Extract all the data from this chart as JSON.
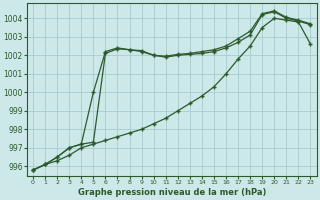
{
  "title": "Graphe pression niveau de la mer (hPa)",
  "background_color": "#cce8e8",
  "grid_color": "#aacccc",
  "line_color": "#2d5a2d",
  "marker_color": "#2d5a2d",
  "xlim": [
    -0.5,
    23.5
  ],
  "ylim": [
    995.5,
    1004.8
  ],
  "yticks": [
    996,
    997,
    998,
    999,
    1000,
    1001,
    1002,
    1003,
    1004
  ],
  "xticks": [
    0,
    1,
    2,
    3,
    4,
    5,
    6,
    7,
    8,
    9,
    10,
    11,
    12,
    13,
    14,
    15,
    16,
    17,
    18,
    19,
    20,
    21,
    22,
    23
  ],
  "series": [
    {
      "x": [
        0,
        1,
        2,
        3,
        4,
        5,
        6,
        7,
        8,
        9,
        10,
        11,
        12,
        13,
        14,
        15,
        16,
        17,
        18,
        19,
        20,
        21,
        22,
        23
      ],
      "y": [
        995.8,
        996.1,
        996.3,
        996.6,
        997.0,
        997.2,
        997.4,
        997.6,
        997.8,
        998.0,
        998.3,
        998.6,
        999.0,
        999.4,
        999.8,
        1000.3,
        1001.0,
        1001.8,
        1002.5,
        1003.5,
        1004.0,
        1003.9,
        1003.8,
        1002.6
      ]
    },
    {
      "x": [
        0,
        1,
        2,
        3,
        4,
        5,
        6,
        7,
        8,
        9,
        10,
        11,
        12,
        13,
        14,
        15,
        16,
        17,
        18,
        19,
        20,
        21,
        22,
        23
      ],
      "y": [
        995.8,
        996.1,
        996.5,
        997.0,
        997.2,
        997.3,
        1002.1,
        1002.35,
        1002.3,
        1002.25,
        1002.0,
        1001.9,
        1002.0,
        1002.05,
        1002.1,
        1002.2,
        1002.4,
        1002.7,
        1003.1,
        1004.2,
        1004.35,
        1004.0,
        1003.85,
        1003.65
      ]
    },
    {
      "x": [
        0,
        1,
        2,
        3,
        4,
        5,
        6,
        7,
        8,
        9,
        10,
        11,
        12,
        13,
        14,
        15,
        16,
        17,
        18,
        19,
        20,
        21,
        22,
        23
      ],
      "y": [
        995.8,
        996.1,
        996.5,
        997.0,
        997.2,
        1000.0,
        1002.2,
        1002.4,
        1002.3,
        1002.2,
        1002.0,
        1001.95,
        1002.05,
        1002.1,
        1002.2,
        1002.3,
        1002.5,
        1002.9,
        1003.3,
        1004.25,
        1004.4,
        1004.05,
        1003.9,
        1003.7
      ]
    }
  ]
}
